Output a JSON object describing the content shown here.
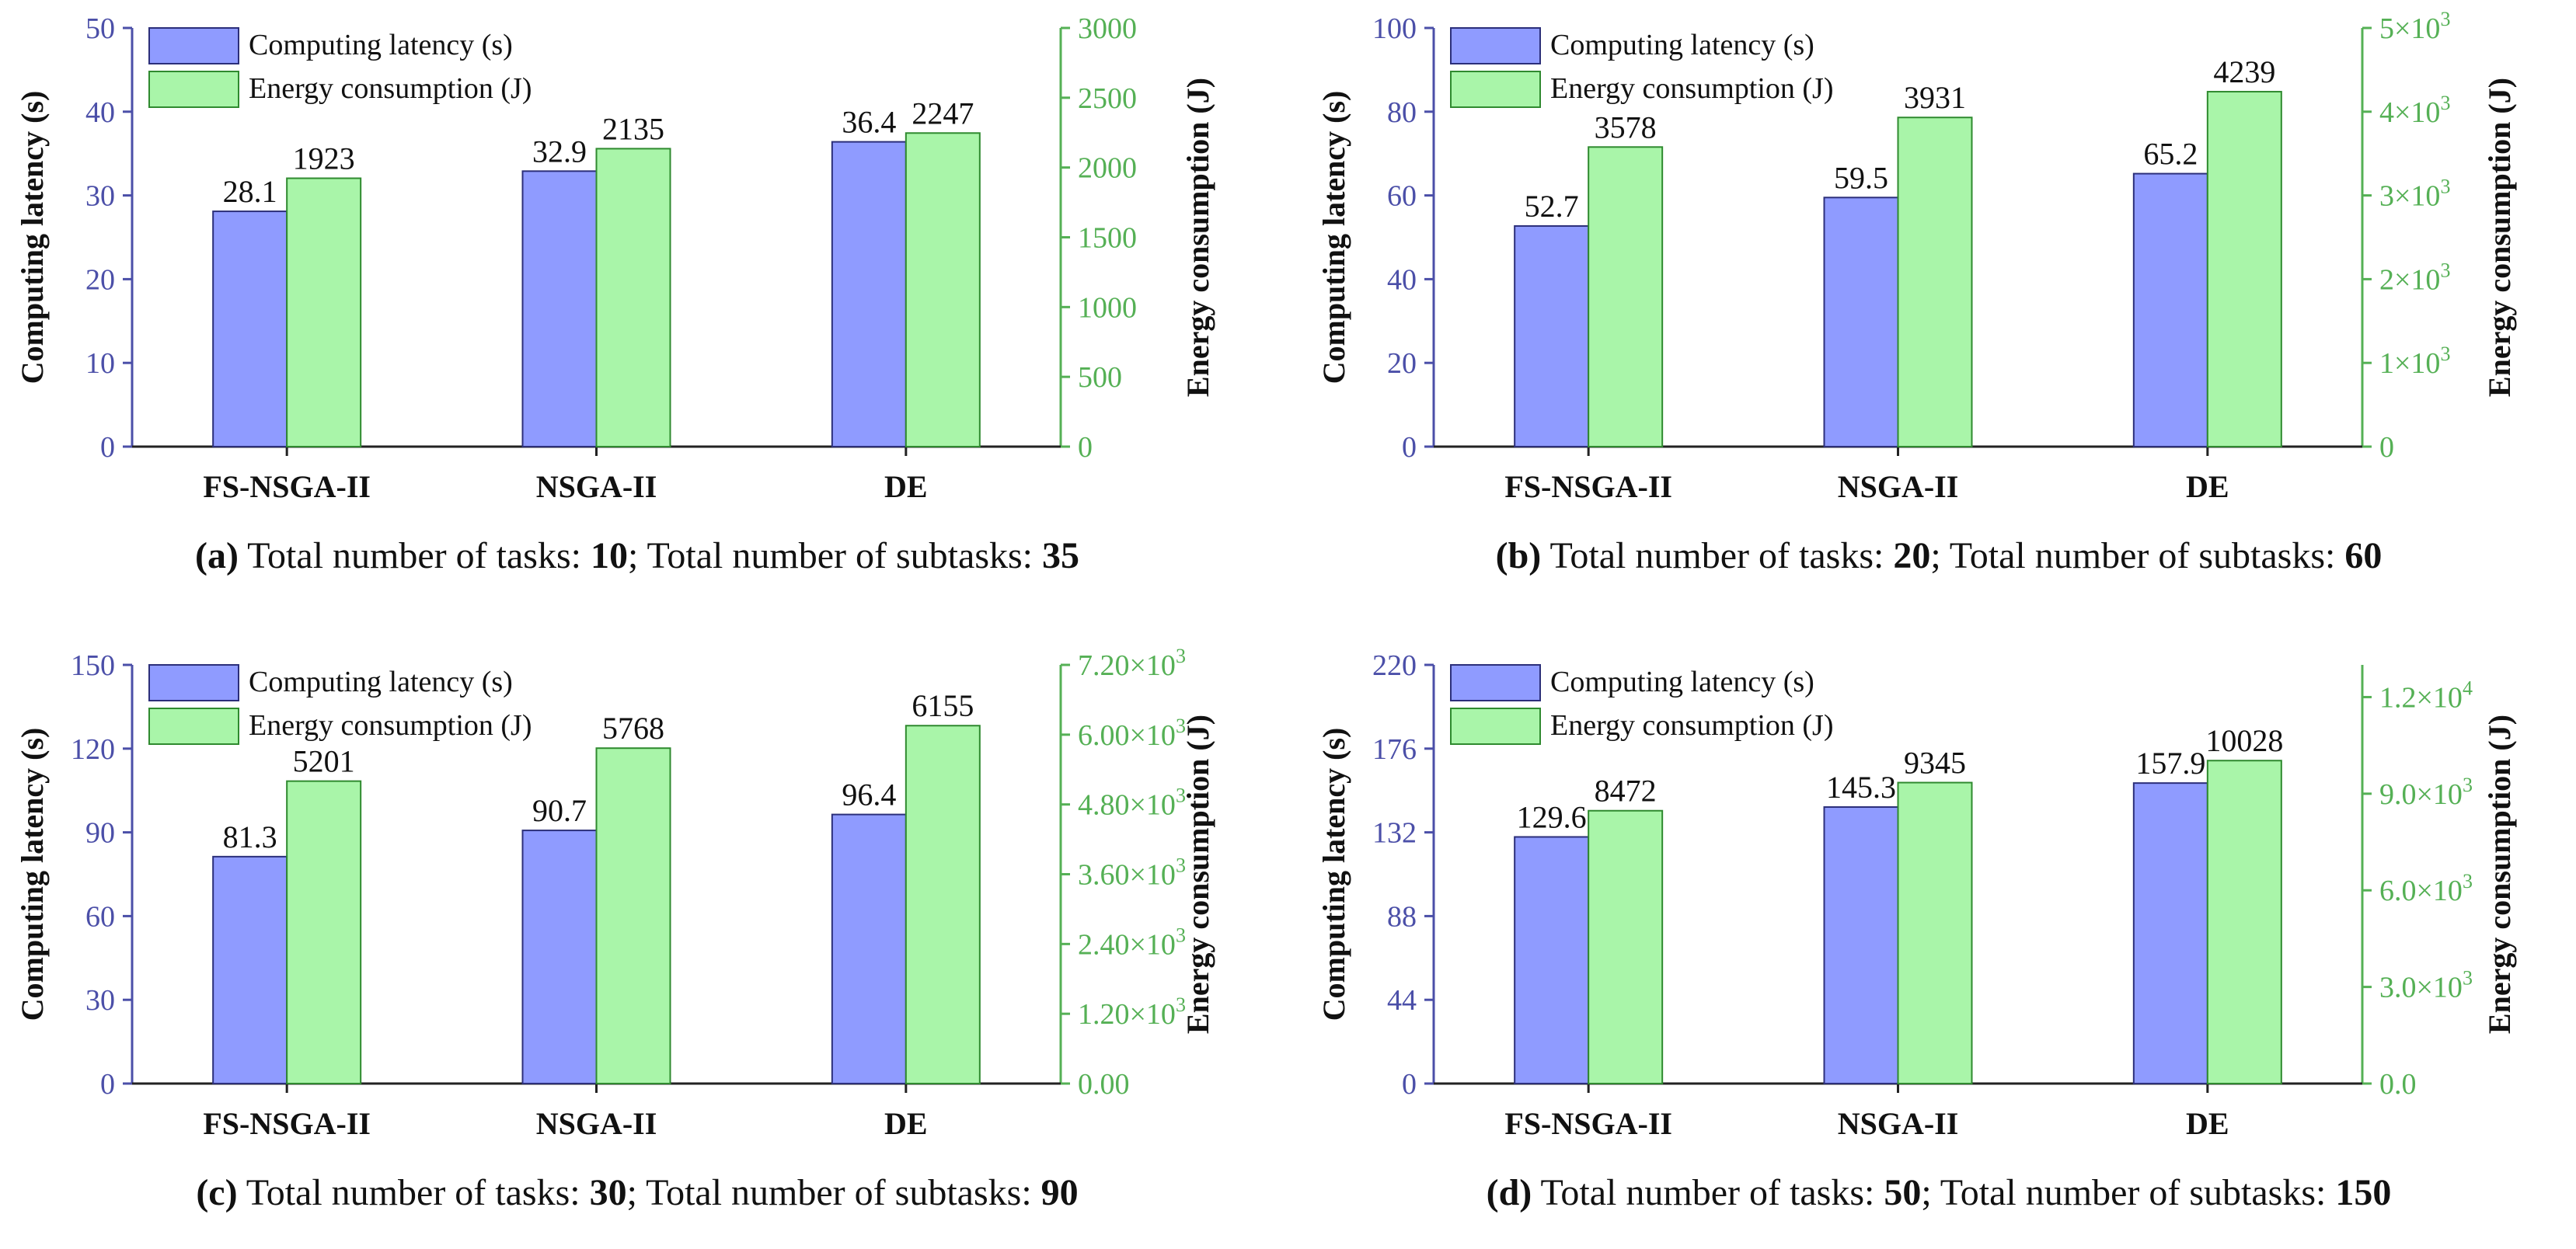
{
  "colors": {
    "latency_fill": "#8f9bff",
    "latency_edge": "#2c2f7a",
    "energy_fill": "#a9f5a9",
    "energy_edge": "#2f8a2f",
    "left_axis": "#4b4fa8",
    "right_axis": "#55b055"
  },
  "chart_data": [
    {
      "type": "bar",
      "panel": "a",
      "categories": [
        "FS-NSGA-II",
        "NSGA-II",
        "DE"
      ],
      "series": [
        {
          "name": "Computing latency (s)",
          "axis": "left",
          "values": [
            28.1,
            32.9,
            36.4
          ],
          "value_labels": [
            "28.1",
            "32.9",
            "36.4"
          ]
        },
        {
          "name": "Energy consumption (J)",
          "axis": "right",
          "values": [
            1923,
            2135,
            2247
          ],
          "value_labels": [
            "1923",
            "2135",
            "2247"
          ]
        }
      ],
      "ylabel": "Computing latency (s)",
      "ylabel_right": "Energy consumption (J)",
      "ylim": [
        0,
        50
      ],
      "ylim_right": [
        0,
        3000
      ],
      "yticks": [
        "0",
        "10",
        "20",
        "30",
        "40",
        "50"
      ],
      "yticks_right": [
        "0",
        "500",
        "1000",
        "1500",
        "2000",
        "2500",
        "3000"
      ],
      "legend": "top-left",
      "caption": {
        "label": "(a)",
        "text1": "Total number of tasks: ",
        "tasks": "10",
        "text2": "; Total number of subtasks: ",
        "subtasks": "35"
      }
    },
    {
      "type": "bar",
      "panel": "b",
      "categories": [
        "FS-NSGA-II",
        "NSGA-II",
        "DE"
      ],
      "series": [
        {
          "name": "Computing latency (s)",
          "axis": "left",
          "values": [
            52.7,
            59.5,
            65.2
          ],
          "value_labels": [
            "52.7",
            "59.5",
            "65.2"
          ]
        },
        {
          "name": "Energy consumption (J)",
          "axis": "right",
          "values": [
            3578,
            3931,
            4239
          ],
          "value_labels": [
            "3578",
            "3931",
            "4239"
          ]
        }
      ],
      "ylabel": "Computing latency (s)",
      "ylabel_right": "Energy consumption (J)",
      "ylim": [
        0,
        100
      ],
      "ylim_right": [
        0,
        5000
      ],
      "yticks": [
        "0",
        "20",
        "40",
        "60",
        "80",
        "100"
      ],
      "yticks_right": [
        "0",
        "1×10³",
        "2×10³",
        "3×10³",
        "4×10³",
        "5×10³"
      ],
      "legend": "top-left",
      "caption": {
        "label": "(b)",
        "text1": "Total number of tasks: ",
        "tasks": "20",
        "text2": "; Total number of subtasks: ",
        "subtasks": "60"
      }
    },
    {
      "type": "bar",
      "panel": "c",
      "categories": [
        "FS-NSGA-II",
        "NSGA-II",
        "DE"
      ],
      "series": [
        {
          "name": "Computing latency (s)",
          "axis": "left",
          "values": [
            81.3,
            90.7,
            96.4
          ],
          "value_labels": [
            "81.3",
            "90.7",
            "96.4"
          ]
        },
        {
          "name": "Energy consumption (J)",
          "axis": "right",
          "values": [
            5201,
            5768,
            6155
          ],
          "value_labels": [
            "5201",
            "5768",
            "6155"
          ]
        }
      ],
      "ylabel": "Computing latency (s)",
      "ylabel_right": "Energy consumption (J)",
      "ylim": [
        0,
        150
      ],
      "ylim_right": [
        0,
        7200
      ],
      "yticks": [
        "0",
        "30",
        "60",
        "90",
        "120",
        "150"
      ],
      "yticks_right": [
        "0.00",
        "1.20×10³",
        "2.40×10³",
        "3.60×10³",
        "4.80×10³",
        "6.00×10³",
        "7.20×10³"
      ],
      "legend": "top-left",
      "caption": {
        "label": "(c)",
        "text1": "Total number of tasks: ",
        "tasks": "30",
        "text2": "; Total number of subtasks: ",
        "subtasks": "90"
      }
    },
    {
      "type": "bar",
      "panel": "d",
      "categories": [
        "FS-NSGA-II",
        "NSGA-II",
        "DE"
      ],
      "series": [
        {
          "name": "Computing latency (s)",
          "axis": "left",
          "values": [
            129.6,
            145.3,
            157.9
          ],
          "value_labels": [
            "129.6",
            "145.3",
            "157.9"
          ]
        },
        {
          "name": "Energy consumption (J)",
          "axis": "right",
          "values": [
            8472,
            9345,
            10028
          ],
          "value_labels": [
            "8472",
            "9345",
            "10028"
          ]
        }
      ],
      "ylabel": "Computing latency (s)",
      "ylabel_right": "Energy consumption (J)",
      "ylim": [
        0,
        220
      ],
      "ylim_right": [
        0,
        13000
      ],
      "yticks": [
        "0",
        "44",
        "88",
        "132",
        "176",
        "220"
      ],
      "yticks_right": [
        "0.0",
        "3.0×10³",
        "6.0×10³",
        "9.0×10³",
        "1.2×10⁴"
      ],
      "yticks_right_values": [
        0,
        3000,
        6000,
        9000,
        12000
      ],
      "legend": "top-left",
      "caption": {
        "label": "(d)",
        "text1": "Total number of tasks: ",
        "tasks": "50",
        "text2": "; Total number of subtasks: ",
        "subtasks": "150"
      }
    }
  ]
}
